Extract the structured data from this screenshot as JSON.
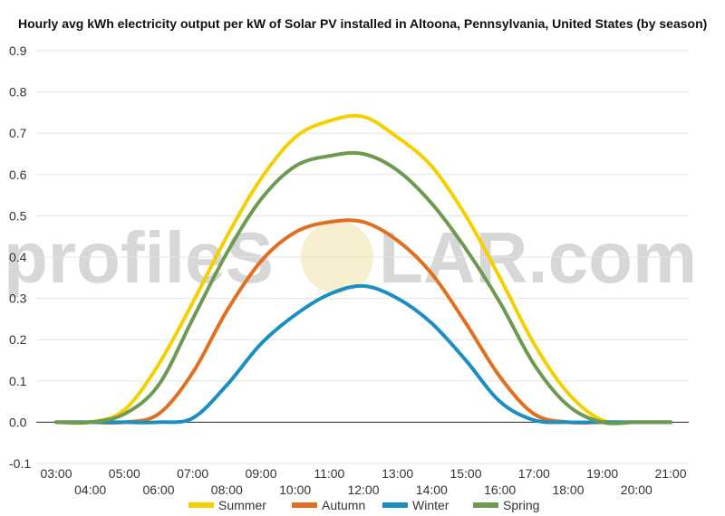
{
  "chart_data": {
    "type": "line",
    "title": "Hourly avg kWh electricity output per kW of Solar PV installed in Altoona, Pennsylvania, United States (by season)",
    "xlabel": "",
    "ylabel": "",
    "x": [
      "03:00",
      "04:00",
      "05:00",
      "06:00",
      "07:00",
      "08:00",
      "09:00",
      "10:00",
      "11:00",
      "12:00",
      "13:00",
      "14:00",
      "15:00",
      "16:00",
      "17:00",
      "18:00",
      "19:00",
      "20:00",
      "21:00"
    ],
    "ylim": [
      -0.1,
      0.9
    ],
    "yticks": [
      "-0.1",
      "0.0",
      "0.1",
      "0.2",
      "0.3",
      "0.4",
      "0.5",
      "0.6",
      "0.7",
      "0.8",
      "0.9"
    ],
    "grid": true,
    "legend_position": "bottom",
    "series": [
      {
        "name": "Summer",
        "color": "#f5d000",
        "values": [
          0,
          0,
          0.03,
          0.14,
          0.29,
          0.45,
          0.59,
          0.69,
          0.73,
          0.74,
          0.69,
          0.62,
          0.5,
          0.35,
          0.19,
          0.07,
          0.005,
          0,
          0
        ]
      },
      {
        "name": "Autumn",
        "color": "#e07020",
        "values": [
          0,
          0,
          0,
          0.02,
          0.12,
          0.27,
          0.39,
          0.46,
          0.485,
          0.485,
          0.44,
          0.36,
          0.24,
          0.11,
          0.02,
          0,
          0,
          0,
          0
        ]
      },
      {
        "name": "Winter",
        "color": "#1b8fc2",
        "values": [
          0,
          0,
          0,
          0,
          0.01,
          0.09,
          0.19,
          0.26,
          0.31,
          0.33,
          0.3,
          0.24,
          0.15,
          0.05,
          0.005,
          0,
          0,
          0,
          0
        ]
      },
      {
        "name": "Spring",
        "color": "#6e9a50",
        "values": [
          0,
          0,
          0.02,
          0.09,
          0.25,
          0.41,
          0.54,
          0.62,
          0.645,
          0.65,
          0.61,
          0.53,
          0.42,
          0.29,
          0.14,
          0.04,
          0,
          0,
          0
        ]
      }
    ]
  },
  "watermark": {
    "left": "profileS",
    "right": "LAR.com"
  }
}
